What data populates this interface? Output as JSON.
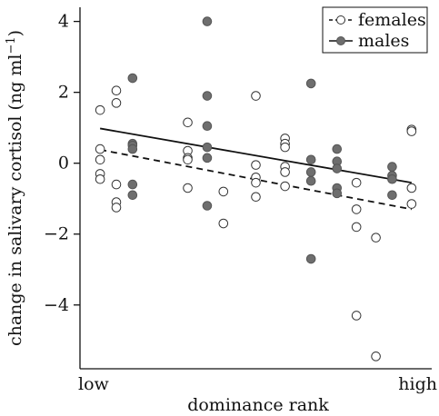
{
  "chart_data": {
    "type": "scatter",
    "xlabel": "dominance rank",
    "ylabel_main": "change in salivary cortisol (ng ml",
    "ylabel_sup": "−1",
    "ylabel_close": ")",
    "x_tick_labels": [
      "low",
      "high"
    ],
    "ylim": [
      -5.8,
      4.4
    ],
    "y_ticks": [
      4,
      2,
      0,
      -2,
      -4
    ],
    "y_tick_labels": [
      "4",
      "2",
      "0",
      "−2",
      "−4"
    ],
    "xlim": [
      0,
      100
    ],
    "legend_position": "top-right",
    "grid": false,
    "series": [
      {
        "name": "females",
        "marker": "open-circle",
        "line_style": "dashed",
        "trend": [
          [
            2,
            0.38
          ],
          [
            98,
            -1.3
          ]
        ],
        "points": [
          [
            2,
            1.5
          ],
          [
            2,
            0.4
          ],
          [
            2,
            0.1
          ],
          [
            2,
            -0.3
          ],
          [
            2,
            -0.45
          ],
          [
            7,
            2.05
          ],
          [
            7,
            1.7
          ],
          [
            7,
            -0.6
          ],
          [
            7,
            -1.1
          ],
          [
            7,
            -1.25
          ],
          [
            29,
            1.15
          ],
          [
            29,
            0.35
          ],
          [
            29,
            0.15
          ],
          [
            29,
            0.1
          ],
          [
            29,
            -0.7
          ],
          [
            40,
            -0.8
          ],
          [
            40,
            -1.7
          ],
          [
            50,
            1.9
          ],
          [
            50,
            -0.05
          ],
          [
            50,
            -0.4
          ],
          [
            50,
            -0.55
          ],
          [
            50,
            -0.95
          ],
          [
            59,
            0.7
          ],
          [
            59,
            0.55
          ],
          [
            59,
            0.45
          ],
          [
            59,
            -0.1
          ],
          [
            59,
            -0.25
          ],
          [
            59,
            -0.65
          ],
          [
            81,
            -0.55
          ],
          [
            81,
            -1.3
          ],
          [
            81,
            -1.8
          ],
          [
            81,
            -4.3
          ],
          [
            87,
            -2.1
          ],
          [
            87,
            -5.45
          ],
          [
            98,
            0.95
          ],
          [
            98,
            0.9
          ],
          [
            98,
            -0.7
          ],
          [
            98,
            -1.15
          ]
        ]
      },
      {
        "name": "males",
        "marker": "filled-circle",
        "line_style": "solid",
        "trend": [
          [
            2,
            0.98
          ],
          [
            98,
            -0.55
          ]
        ],
        "points": [
          [
            12,
            2.4
          ],
          [
            12,
            0.55
          ],
          [
            12,
            0.5
          ],
          [
            12,
            0.4
          ],
          [
            12,
            -0.6
          ],
          [
            12,
            -0.9
          ],
          [
            35,
            4.0
          ],
          [
            35,
            1.9
          ],
          [
            35,
            1.05
          ],
          [
            35,
            0.45
          ],
          [
            35,
            0.15
          ],
          [
            35,
            -1.2
          ],
          [
            67,
            2.25
          ],
          [
            67,
            0.1
          ],
          [
            67,
            -0.25
          ],
          [
            67,
            -0.5
          ],
          [
            67,
            -2.7
          ],
          [
            75,
            0.4
          ],
          [
            75,
            0.05
          ],
          [
            75,
            -0.15
          ],
          [
            75,
            -0.7
          ],
          [
            75,
            -0.85
          ],
          [
            92,
            -0.1
          ],
          [
            92,
            -0.35
          ],
          [
            92,
            -0.45
          ],
          [
            92,
            -0.9
          ]
        ]
      }
    ]
  }
}
